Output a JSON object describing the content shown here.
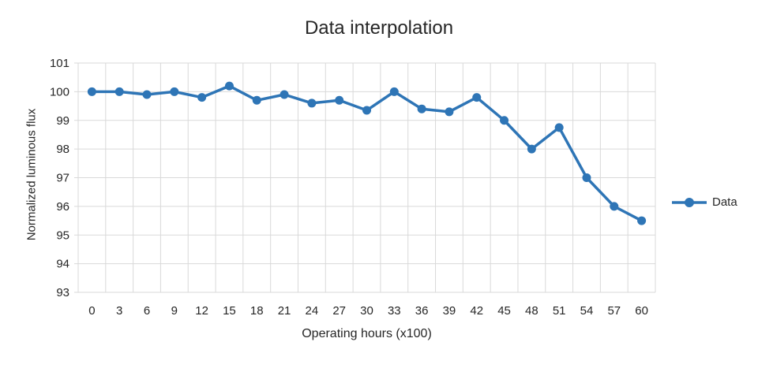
{
  "chart_data": {
    "type": "line",
    "title": "Data interpolation",
    "xlabel": "Operating hours (x100)",
    "ylabel": "Normalized luminous flux",
    "categories": [
      0,
      3,
      6,
      9,
      12,
      15,
      18,
      21,
      24,
      27,
      30,
      33,
      36,
      39,
      42,
      45,
      48,
      51,
      54,
      57,
      60
    ],
    "series": [
      {
        "name": "Data",
        "values": [
          100.0,
          100.0,
          99.9,
          100.0,
          99.8,
          100.2,
          99.7,
          99.9,
          99.6,
          99.7,
          99.35,
          100.0,
          99.4,
          99.3,
          99.8,
          99.0,
          98.0,
          98.75,
          97.0,
          96.0,
          95.5
        ]
      }
    ],
    "ylim": [
      93,
      101
    ],
    "ytick_step": 1,
    "grid": true,
    "legend_position": "right",
    "colors": {
      "series": "#2E75B6",
      "gridline": "#D9D9D9",
      "axis_text": "#262626",
      "background": "#FFFFFF"
    }
  }
}
